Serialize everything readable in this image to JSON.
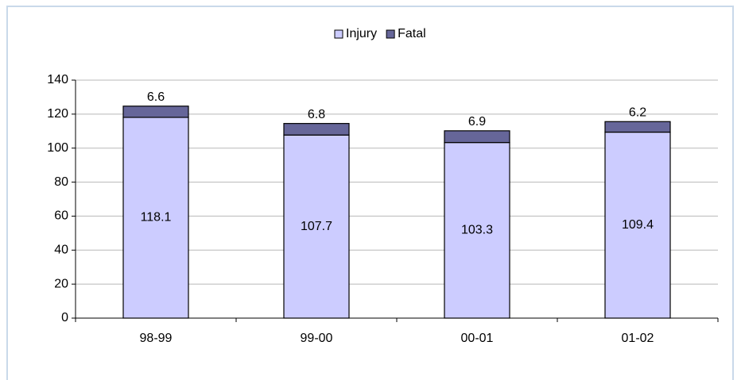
{
  "chart_data": {
    "type": "bar",
    "stacked": true,
    "categories": [
      "98-99",
      "99-00",
      "00-01",
      "01-02"
    ],
    "series": [
      {
        "name": "Injury",
        "color": "#ccccff",
        "values": [
          118.1,
          107.7,
          103.3,
          109.4
        ]
      },
      {
        "name": "Fatal",
        "color": "#666699",
        "values": [
          6.6,
          6.8,
          6.9,
          6.2
        ]
      }
    ],
    "ylim": [
      0,
      140
    ],
    "yticks": [
      0,
      20,
      40,
      60,
      80,
      100,
      120,
      140
    ],
    "grid": true,
    "legend": "top"
  }
}
